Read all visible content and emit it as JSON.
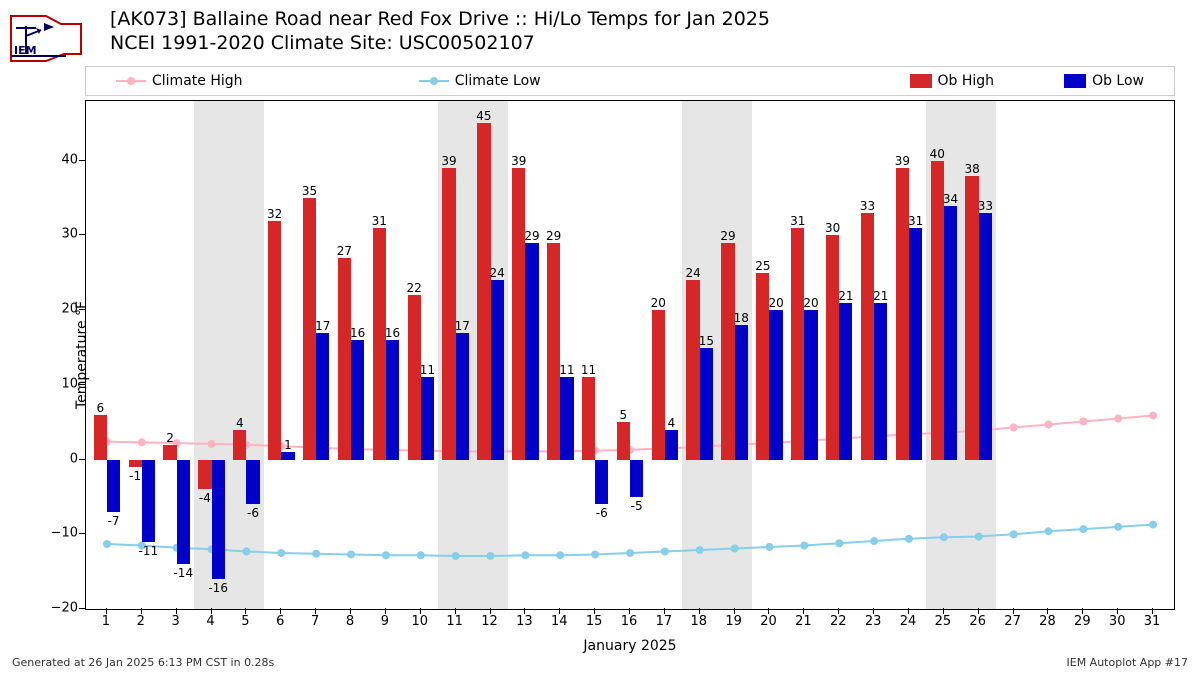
{
  "title_line1": "[AK073] Ballaine Road near Red Fox Drive :: Hi/Lo Temps for Jan 2025",
  "title_line2": "NCEI 1991-2020 Climate Site: USC00502107",
  "footer_left": "Generated at 26 Jan 2025 6:13 PM CST in 0.28s",
  "footer_right": "IEM Autoplot App #17",
  "ylabel": "Temperature °F",
  "xlabel": "January 2025",
  "legend": {
    "climate_high": "Climate High",
    "climate_low": "Climate Low",
    "ob_high": "Ob High",
    "ob_low": "Ob Low"
  },
  "chart": {
    "type": "bar+line",
    "background_color": "#ffffff",
    "weekend_color": "#e6e6e6",
    "grid_color": "#cccccc",
    "ylim": [
      -20,
      48
    ],
    "yticks": [
      -20,
      -10,
      0,
      10,
      20,
      30,
      40
    ],
    "xlim": [
      0.4,
      31.6
    ],
    "xticks": [
      1,
      2,
      3,
      4,
      5,
      6,
      7,
      8,
      9,
      10,
      11,
      12,
      13,
      14,
      15,
      16,
      17,
      18,
      19,
      20,
      21,
      22,
      23,
      24,
      25,
      26,
      27,
      28,
      29,
      30,
      31
    ],
    "weekends": [
      [
        4,
        5
      ],
      [
        11,
        12
      ],
      [
        18,
        19
      ],
      [
        25,
        26
      ]
    ],
    "bar_width": 0.38,
    "colors": {
      "ob_high": "#d62728",
      "ob_low": "#0000c8",
      "climate_high": "#ffb3c0",
      "climate_low": "#87ceeb"
    },
    "label_fontsize": 12,
    "axis_fontsize": 13,
    "days": [
      1,
      2,
      3,
      4,
      5,
      6,
      7,
      8,
      9,
      10,
      11,
      12,
      13,
      14,
      15,
      16,
      17,
      18,
      19,
      20,
      21,
      22,
      23,
      24,
      25,
      26,
      27,
      28,
      29,
      30,
      31
    ],
    "ob_high": [
      6,
      -1,
      2,
      -4,
      4,
      32,
      35,
      27,
      31,
      22,
      39,
      45,
      39,
      29,
      11,
      5,
      20,
      24,
      29,
      25,
      31,
      30,
      33,
      39,
      40,
      38,
      null,
      null,
      null,
      null,
      null
    ],
    "ob_low": [
      -7,
      -11,
      -14,
      -16,
      -6,
      1,
      17,
      16,
      16,
      11,
      17,
      24,
      29,
      11,
      -6,
      -5,
      4,
      15,
      18,
      20,
      20,
      21,
      21,
      31,
      34,
      33,
      null,
      null,
      null,
      null,
      null
    ],
    "climate_high": [
      2.4,
      2.3,
      2.2,
      2.1,
      2.0,
      1.8,
      1.6,
      1.4,
      1.3,
      1.2,
      1.1,
      1.1,
      1.1,
      1.1,
      1.2,
      1.3,
      1.5,
      1.7,
      2.0,
      2.2,
      2.5,
      2.8,
      3.1,
      3.4,
      3.6,
      3.9,
      4.3,
      4.7,
      5.1,
      5.5,
      5.9
    ],
    "climate_low": [
      -11.3,
      -11.5,
      -11.8,
      -12.0,
      -12.3,
      -12.5,
      -12.6,
      -12.7,
      -12.8,
      -12.8,
      -12.9,
      -12.9,
      -12.8,
      -12.8,
      -12.7,
      -12.5,
      -12.3,
      -12.1,
      -11.9,
      -11.7,
      -11.5,
      -11.2,
      -10.9,
      -10.6,
      -10.4,
      -10.3,
      -10.0,
      -9.6,
      -9.3,
      -9.0,
      -8.7
    ]
  }
}
